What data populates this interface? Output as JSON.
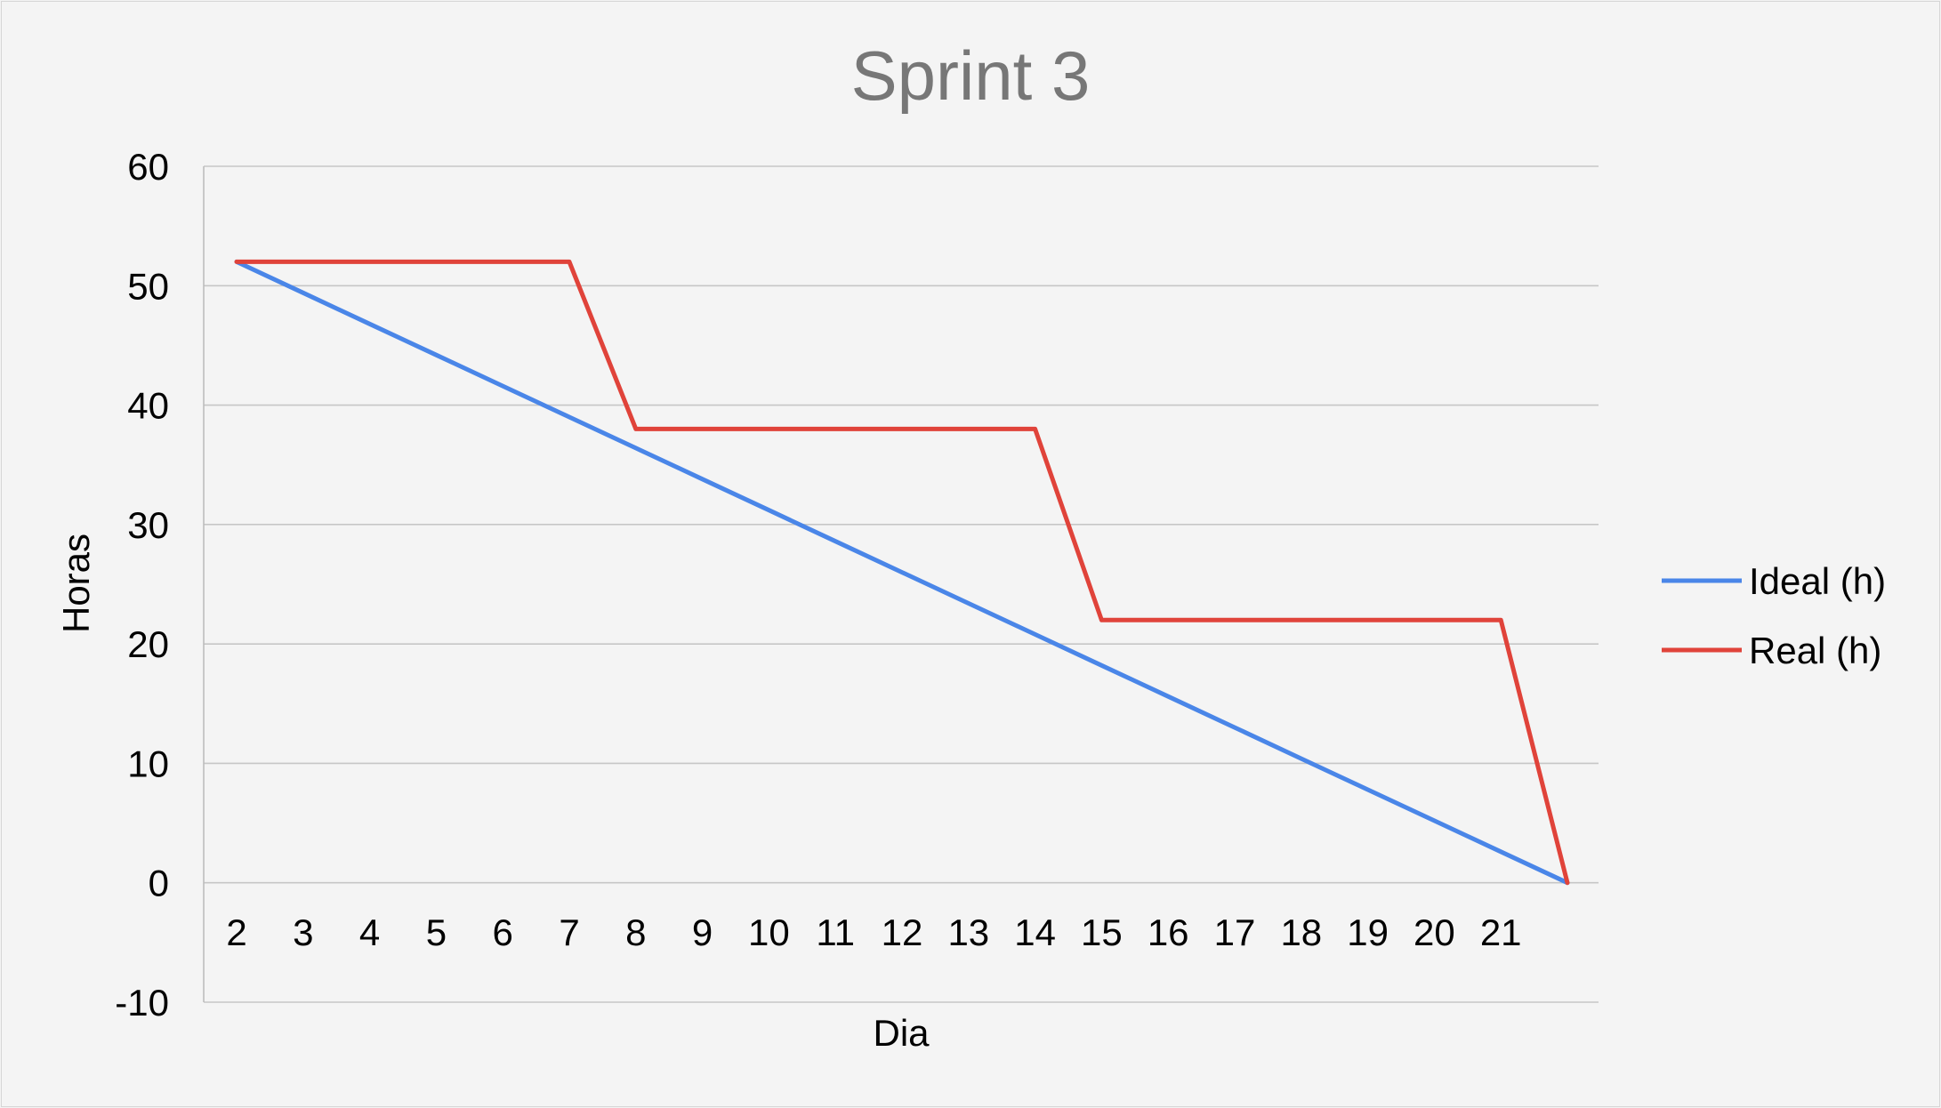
{
  "chart_data": {
    "type": "line",
    "title": "Sprint 3",
    "xlabel": "Dia",
    "ylabel": "Horas",
    "categories": [
      "2",
      "3",
      "4",
      "5",
      "6",
      "7",
      "8",
      "9",
      "10",
      "11",
      "12",
      "13",
      "14",
      "15",
      "16",
      "17",
      "18",
      "19",
      "20",
      "21",
      ""
    ],
    "ylim": [
      -10,
      60
    ],
    "yticks": [
      "60",
      "50",
      "40",
      "30",
      "20",
      "10",
      "0",
      "-10"
    ],
    "grid": true,
    "legend_position": "right",
    "series": [
      {
        "name": "Ideal (h)",
        "color": "#4a86e8",
        "values": [
          52,
          49.4,
          46.8,
          44.2,
          41.6,
          39.0,
          36.4,
          33.8,
          31.2,
          28.6,
          26.0,
          23.4,
          20.8,
          18.2,
          15.6,
          13.0,
          10.4,
          7.8,
          5.2,
          2.6,
          0
        ]
      },
      {
        "name": "Real (h)",
        "color": "#e0433a",
        "values": [
          52,
          52,
          52,
          52,
          52,
          52,
          38,
          38,
          38,
          38,
          38,
          38,
          38,
          22,
          22,
          22,
          22,
          22,
          22,
          22,
          0
        ]
      }
    ]
  }
}
